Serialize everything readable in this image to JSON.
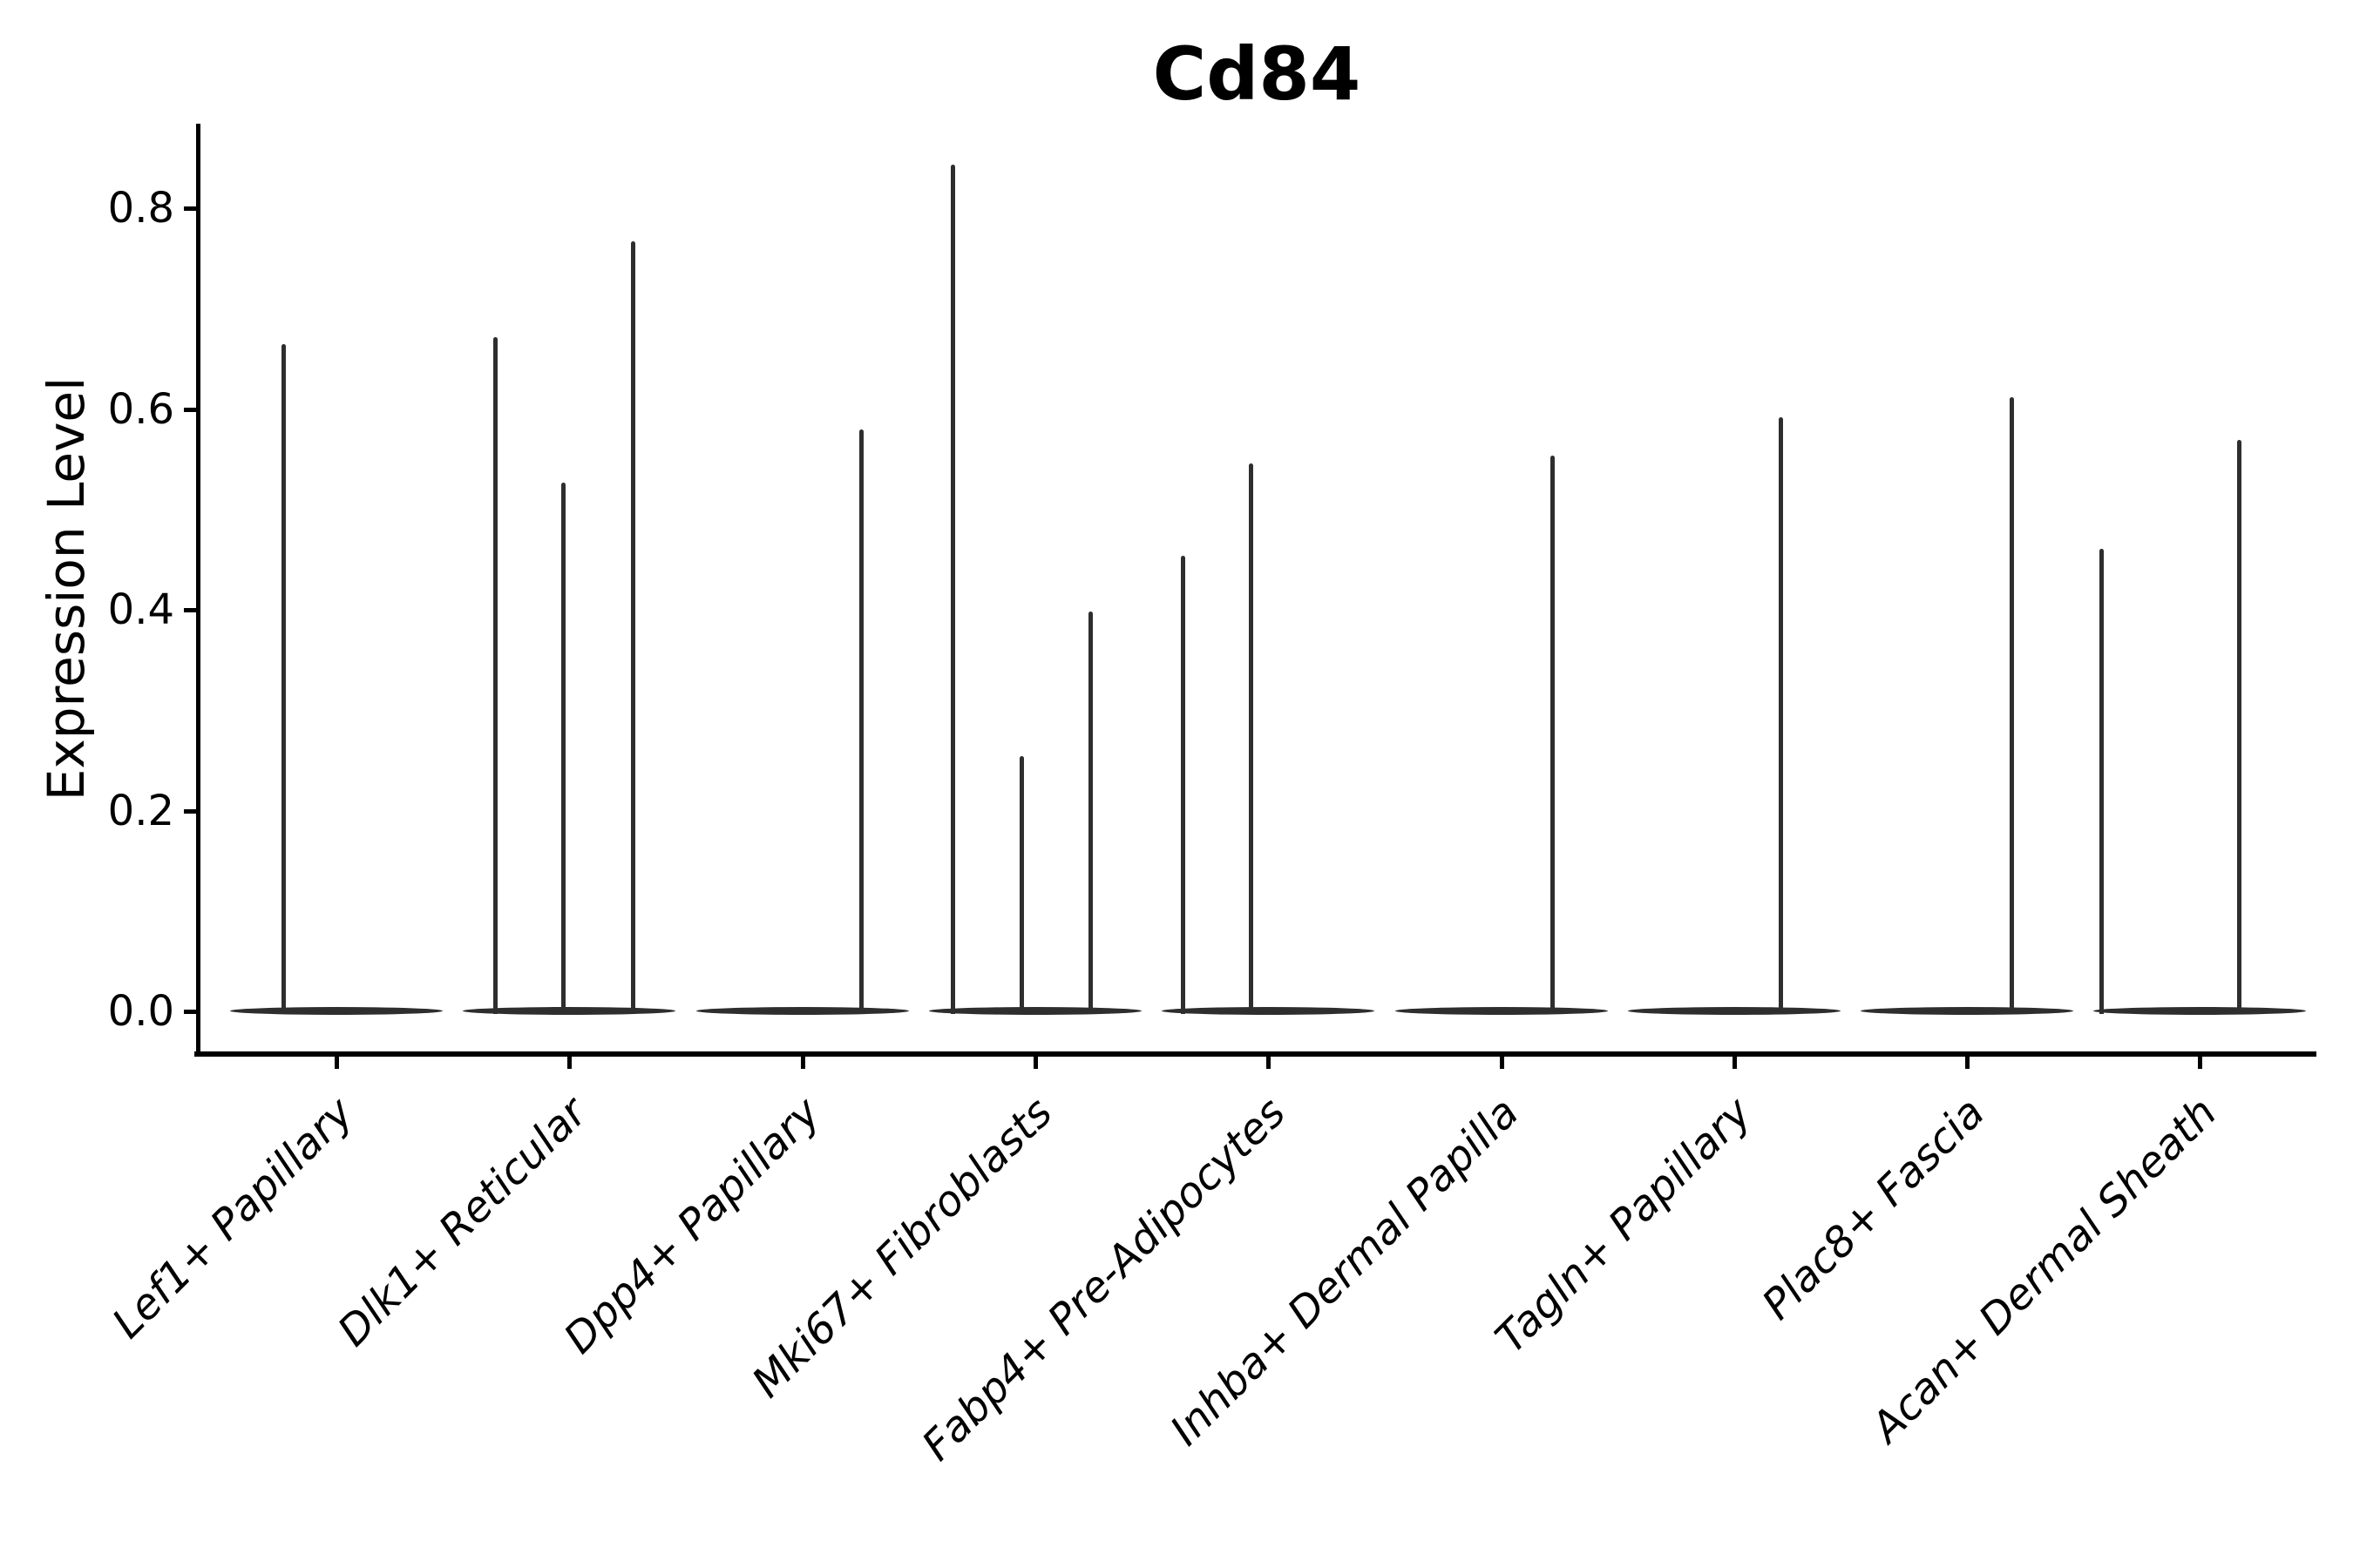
{
  "title": "Cd84",
  "ylabel": "Expression Level",
  "chart_data": {
    "type": "violin",
    "title": "Cd84",
    "xlabel": "",
    "ylabel": "Expression Level",
    "ylim": [
      0,
      0.884
    ],
    "yticks": [
      0.0,
      0.2,
      0.4,
      0.6,
      0.8
    ],
    "ytick_labels": [
      "0.0",
      "0.2",
      "0.4",
      "0.6",
      "0.8"
    ],
    "grid": false,
    "legend": "none",
    "categories": [
      "Lef1+ Papillary",
      "Dlk1+ Reticular",
      "Dpp4+ Papillary",
      "Mki67+ Fibroblasts",
      "Fabp4+ Pre-Adipocytes",
      "Inhba+ Dermal Papilla",
      "Tagln+ Papillary",
      "Plac8+ Fascia",
      "Acan+ Dermal Sheath"
    ],
    "description": "Violin plot of Cd84 expression; all distributions are concentrated at 0 with thin spikes of rare expressing cells reaching the listed maxima.",
    "series": [
      {
        "category": "Lef1+ Papillary",
        "baseline_value": 0.0,
        "spikes": [
          {
            "dx": -61,
            "value": 0.665
          }
        ]
      },
      {
        "category": "Dlk1+ Reticular",
        "baseline_value": 0.0,
        "spikes": [
          {
            "dx": -85,
            "value": 0.672
          },
          {
            "dx": -7,
            "value": 0.527
          },
          {
            "dx": 73,
            "value": 0.767
          }
        ]
      },
      {
        "category": "Dpp4+ Papillary",
        "baseline_value": 0.0,
        "spikes": [
          {
            "dx": 67,
            "value": 0.58
          }
        ]
      },
      {
        "category": "Mki67+ Fibroblasts",
        "baseline_value": 0.0,
        "spikes": [
          {
            "dx": -95,
            "value": 0.843
          },
          {
            "dx": -16,
            "value": 0.254
          },
          {
            "dx": 63,
            "value": 0.398
          }
        ]
      },
      {
        "category": "Fabp4+ Pre-Adipocytes",
        "baseline_value": 0.0,
        "spikes": [
          {
            "dx": -98,
            "value": 0.454
          },
          {
            "dx": -20,
            "value": 0.546
          }
        ]
      },
      {
        "category": "Inhba+ Dermal Papilla",
        "baseline_value": 0.0,
        "spikes": [
          {
            "dx": 58,
            "value": 0.554
          }
        ]
      },
      {
        "category": "Tagln+ Papillary",
        "baseline_value": 0.0,
        "spikes": [
          {
            "dx": 53,
            "value": 0.592
          }
        ]
      },
      {
        "category": "Plac8+ Fascia",
        "baseline_value": 0.0,
        "spikes": [
          {
            "dx": 51,
            "value": 0.612
          }
        ]
      },
      {
        "category": "Acan+ Dermal Sheath",
        "baseline_value": 0.0,
        "spikes": [
          {
            "dx": -113,
            "value": 0.461
          },
          {
            "dx": 45,
            "value": 0.569
          }
        ]
      }
    ],
    "colors": {
      "ink": "#000000",
      "violin": "#2e2e2e",
      "background": "#ffffff"
    }
  }
}
